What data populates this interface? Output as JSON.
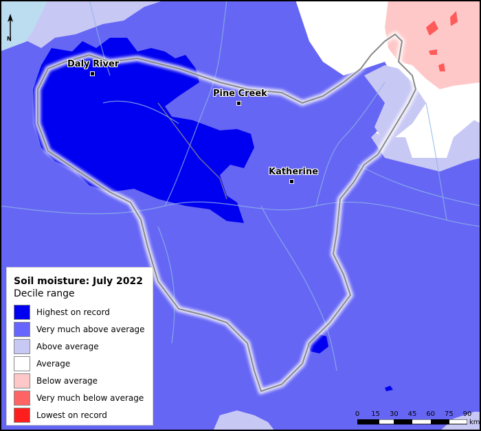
{
  "map": {
    "places": [
      {
        "name": "Daly River"
      },
      {
        "name": "Pine Creek"
      },
      {
        "name": "Katherine"
      }
    ]
  },
  "legend": {
    "title": "Soil moisture: July 2022",
    "subtitle": "Decile range",
    "items": [
      {
        "label": "Highest on record",
        "color": "#0000f0"
      },
      {
        "label": "Very much above average",
        "color": "#6666ff"
      },
      {
        "label": "Above average",
        "color": "#c8c8f5"
      },
      {
        "label": "Average",
        "color": "#ffffff"
      },
      {
        "label": "Below average",
        "color": "#ffc8c8"
      },
      {
        "label": "Very much below average",
        "color": "#ff6464"
      },
      {
        "label": "Lowest on record",
        "color": "#ff1e1e"
      }
    ]
  },
  "scale_bar": {
    "ticks": [
      "0",
      "15",
      "30",
      "45",
      "60",
      "75",
      "90"
    ],
    "unit": "km"
  },
  "north_arrow": {
    "letter": "N",
    "icon": "north-arrow-icon"
  },
  "colors": {
    "very_much_above": "#6666f5",
    "highest": "#0000f0",
    "above": "#c8c8f5",
    "average": "#ffffff",
    "below": "#ffc8c8",
    "very_much_below": "#ff5a5a",
    "water": "#bcdcf0",
    "river": "#8fb4e6",
    "boundary": "#888888"
  }
}
